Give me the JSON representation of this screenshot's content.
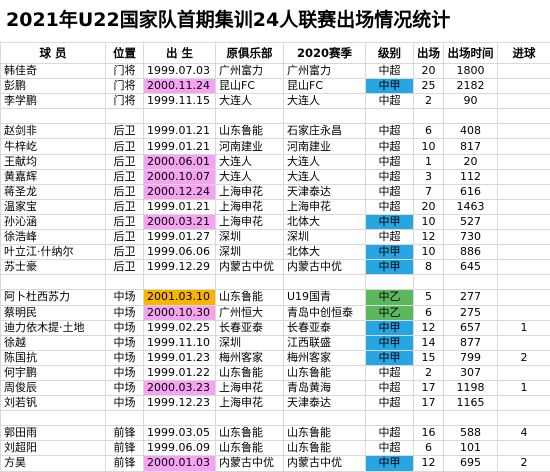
{
  "title": "2021年U22国家队首期集训24人联赛出场情况统计",
  "table": {
    "header": [
      "球 员",
      "位置",
      "出 生",
      "原俱乐部",
      "2020赛季",
      "级别",
      "出场",
      "出场时间",
      "进球"
    ],
    "groups": [
      {
        "rows": [
          {
            "name": "韩佳奇",
            "position": "门将",
            "birth": "1999.07.03",
            "club": "广州富力",
            "club_2020": "广州富力",
            "level": "中超",
            "apps": 20,
            "minutes": 1800
          },
          {
            "name": "彭鹏",
            "position": "门将",
            "birth": "2000.11.24",
            "birth_color": "#f5a3f2",
            "club": "昆山FC",
            "club_2020": "昆山FC",
            "level": "中甲",
            "level_color": "#27a4e2",
            "apps": 25,
            "minutes": 2182
          },
          {
            "name": "李学鹏",
            "position": "门将",
            "birth": "1999.11.15",
            "club": "大连人",
            "club_2020": "大连人",
            "level": "中超",
            "apps": 2,
            "minutes": 90
          }
        ]
      },
      {
        "rows": [
          {
            "name": "赵剑非",
            "position": "后卫",
            "birth": "1999.01.21",
            "club": "山东鲁能",
            "club_2020": "石家庄永昌",
            "level": "中超",
            "apps": 6,
            "minutes": 408
          },
          {
            "name": "牛梓屹",
            "position": "后卫",
            "birth": "1999.01.21",
            "club": "河南建业",
            "club_2020": "河南建业",
            "level": "中超",
            "apps": 10,
            "minutes": 817
          },
          {
            "name": "王献均",
            "position": "后卫",
            "birth": "2000.06.01",
            "birth_color": "#f5a3f2",
            "club": "大连人",
            "club_2020": "大连人",
            "level": "中超",
            "apps": 1,
            "minutes": 20
          },
          {
            "name": "黄嘉辉",
            "position": "后卫",
            "birth": "2000.10.07",
            "birth_color": "#f5a3f2",
            "club": "大连人",
            "club_2020": "大连人",
            "level": "中超",
            "apps": 3,
            "minutes": 112
          },
          {
            "name": "蒋圣龙",
            "position": "后卫",
            "birth": "2000.12.24",
            "birth_color": "#f5a3f2",
            "club": "上海申花",
            "club_2020": "天津泰达",
            "level": "中超",
            "apps": 7,
            "minutes": 616
          },
          {
            "name": "温家宝",
            "position": "后卫",
            "birth": "1999.01.21",
            "club": "上海申花",
            "club_2020": "上海申花",
            "level": "中超",
            "apps": 20,
            "minutes": 1463
          },
          {
            "name": "孙沁涵",
            "position": "后卫",
            "birth": "2000.03.21",
            "birth_color": "#f5a3f2",
            "club": "上海申花",
            "club_2020": "北体大",
            "level": "中甲",
            "level_color": "#27a4e2",
            "apps": 10,
            "minutes": 527
          },
          {
            "name": "徐浩峰",
            "position": "后卫",
            "birth": "1999.01.27",
            "club": "深圳",
            "club_2020": "深圳",
            "level": "中超",
            "apps": 12,
            "minutes": 730
          },
          {
            "name": "叶立江·什纳尔",
            "position": "后卫",
            "birth": "1999.06.06",
            "club": "深圳",
            "club_2020": "北体大",
            "level": "中甲",
            "level_color": "#27a4e2",
            "apps": 10,
            "minutes": 886
          },
          {
            "name": "苏士豪",
            "position": "后卫",
            "birth": "1999.12.29",
            "club": "内蒙古中优",
            "club_2020": "内蒙古中优",
            "level": "中甲",
            "level_color": "#27a4e2",
            "apps": 8,
            "minutes": 645
          }
        ]
      },
      {
        "rows": [
          {
            "name": "阿卜杜西苏力",
            "position": "中场",
            "birth": "2001.03.10",
            "birth_color": "#f7b500",
            "club": "山东鲁能",
            "club_2020": "U19国青",
            "level": "中乙",
            "level_color": "#5cb85c",
            "apps": 5,
            "minutes": 277
          },
          {
            "name": "蔡明民",
            "position": "中场",
            "birth": "2000.10.30",
            "birth_color": "#f5a3f2",
            "club": "广州恒大",
            "club_2020": "青岛中创恒泰",
            "level": "中乙",
            "level_color": "#5cb85c",
            "apps": 6,
            "minutes": 275
          },
          {
            "name": "迪力依木提·土地",
            "position": "中场",
            "birth": "1999.02.25",
            "club": "长春亚泰",
            "club_2020": "长春亚泰",
            "level": "中甲",
            "level_color": "#27a4e2",
            "apps": 12,
            "minutes": 657,
            "goals": 1
          },
          {
            "name": "徐越",
            "position": "中场",
            "birth": "1999.11.10",
            "club": "深圳",
            "club_2020": "江西联盛",
            "level": "中甲",
            "level_color": "#27a4e2",
            "apps": 14,
            "minutes": 877
          },
          {
            "name": "陈国抗",
            "position": "中场",
            "birth": "1999.01.23",
            "club": "梅州客家",
            "club_2020": "梅州客家",
            "level": "中甲",
            "level_color": "#27a4e2",
            "apps": 15,
            "minutes": 799,
            "goals": 2
          },
          {
            "name": "何宇鹏",
            "position": "中场",
            "birth": "1999.01.22",
            "club": "山东鲁能",
            "club_2020": "山东鲁能",
            "level": "中超",
            "apps": 2,
            "minutes": 307
          },
          {
            "name": "周俊辰",
            "position": "中场",
            "birth": "2000.03.23",
            "birth_color": "#f5a3f2",
            "club": "上海申花",
            "club_2020": "青岛黄海",
            "level": "中超",
            "apps": 17,
            "minutes": 1198,
            "goals": 1
          },
          {
            "name": "刘若钒",
            "position": "中场",
            "birth": "1999.12.23",
            "club": "上海申花",
            "club_2020": "天津泰达",
            "level": "中超",
            "apps": 17,
            "minutes": 1165
          }
        ]
      },
      {
        "rows": [
          {
            "name": "郭田雨",
            "position": "前锋",
            "birth": "1999.03.05",
            "club": "山东鲁能",
            "club_2020": "山东鲁能",
            "level": "中超",
            "apps": 16,
            "minutes": 588,
            "goals": 4
          },
          {
            "name": "刘超阳",
            "position": "前锋",
            "birth": "1999.06.09",
            "club": "山东鲁能",
            "club_2020": "山东鲁能",
            "level": "中超",
            "apps": 6,
            "minutes": 101
          },
          {
            "name": "方昊",
            "position": "前锋",
            "birth": "2000.01.03",
            "birth_color": "#f5a3f2",
            "club": "内蒙古中优",
            "club_2020": "内蒙古中优",
            "level": "中甲",
            "level_color": "#27a4e2",
            "apps": 12,
            "minutes": 695,
            "goals": 2
          }
        ]
      }
    ]
  }
}
